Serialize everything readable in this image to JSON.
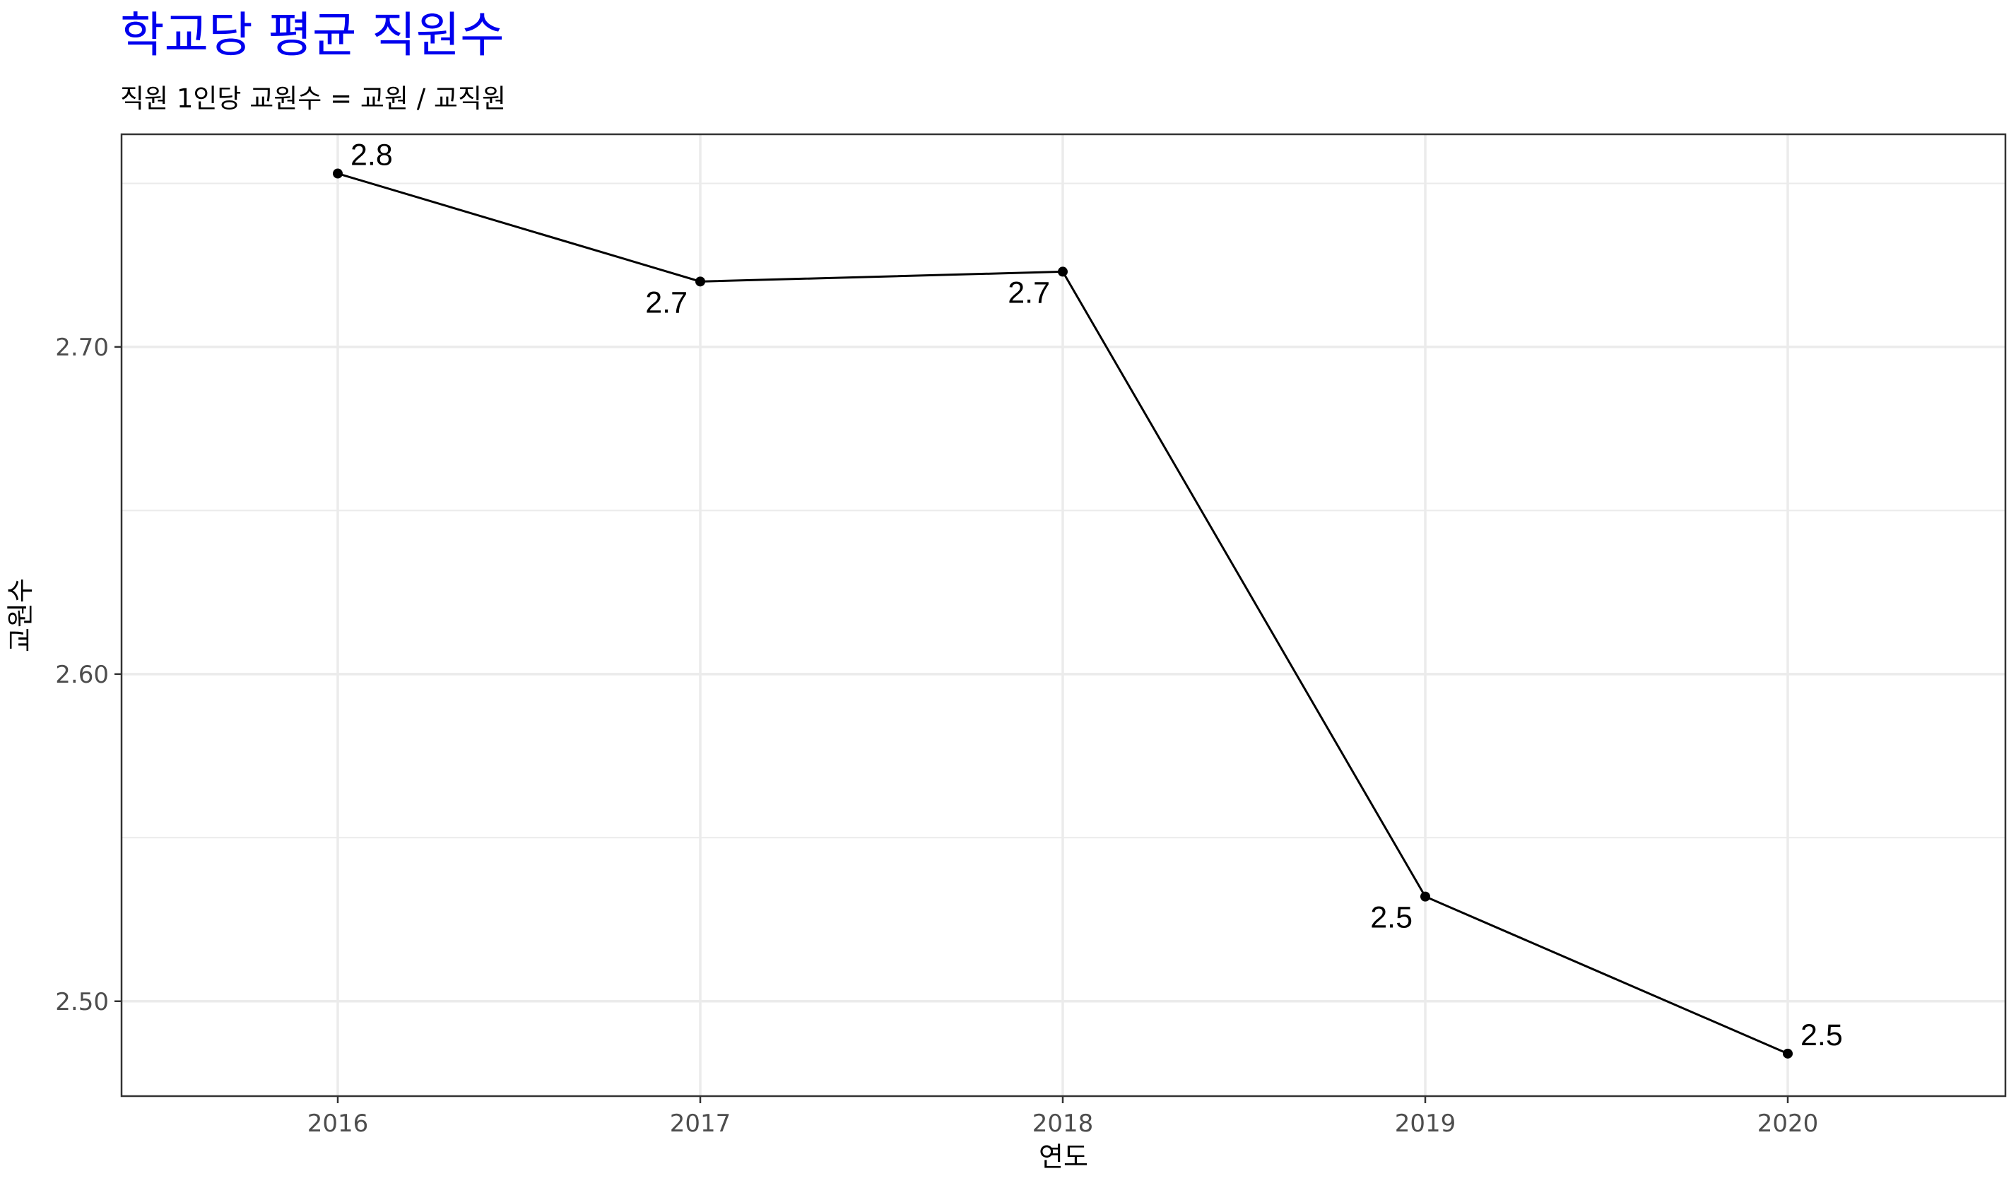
{
  "chart_data": {
    "type": "line",
    "title": "학교당 평균 직원수",
    "subtitle": "직원 1인당 교원수 = 교원 / 교직원",
    "xlabel": "연도",
    "ylabel": "교원수",
    "x": [
      "2016",
      "2017",
      "2018",
      "2019",
      "2020"
    ],
    "y": [
      2.753,
      2.72,
      2.723,
      2.532,
      2.484
    ],
    "data_labels": [
      "2.8",
      "2.7",
      "2.7",
      "2.5",
      "2.5"
    ],
    "ylim": [
      2.471,
      2.765
    ],
    "yticks": [
      2.5,
      2.6,
      2.7
    ],
    "ytick_labels": [
      "2.50",
      "2.60",
      "2.70"
    ],
    "grid": true,
    "colors": {
      "title": "#0000ee",
      "line": "#000000",
      "grid": "#ebebeb",
      "panel_border": "#333333"
    }
  }
}
